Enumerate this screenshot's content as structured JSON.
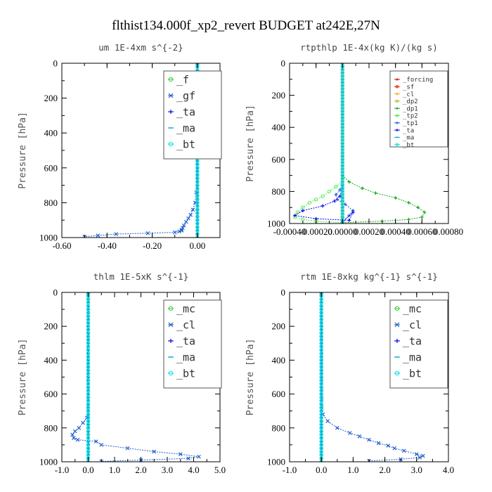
{
  "figure_title": "flthist134.000f_xp2_revert  BUDGET at242E,27N",
  "chart_data": [
    {
      "type": "line",
      "title": "um  1E-4xm s^{-2}",
      "ylabel": "Pressure [hPa]",
      "xlim": [
        -0.6,
        0.1
      ],
      "ylim": [
        1000,
        0
      ],
      "xticks": [
        -0.6,
        -0.4,
        -0.2,
        0.0
      ],
      "xtick_labels": [
        "-0.60",
        "-0.40",
        "-0.20",
        "0.00"
      ],
      "yticks": [
        0,
        200,
        400,
        600,
        800,
        1000
      ],
      "ytick_labels": [
        "0",
        "200",
        "400",
        "600",
        "800",
        "1000"
      ],
      "legend_position": "top-right",
      "series": [
        {
          "name": "_f",
          "color": "#33cc33",
          "marker": "o",
          "x": [
            0,
            0
          ],
          "y": [
            0,
            1000
          ]
        },
        {
          "name": "_gf",
          "color": "#1f5fcf",
          "marker": "x",
          "x": [
            0,
            -0.005,
            -0.01,
            -0.02,
            -0.03,
            -0.04,
            -0.05,
            -0.06,
            -0.065,
            -0.07,
            -0.07,
            -0.08,
            -0.1,
            -0.22,
            -0.36,
            -0.44,
            -0.5
          ],
          "y": [
            0,
            740,
            800,
            840,
            870,
            890,
            910,
            930,
            945,
            955,
            960,
            965,
            970,
            975,
            980,
            988,
            995
          ]
        },
        {
          "name": "_ta",
          "color": "#0000ee",
          "marker": "+",
          "x": [
            0,
            0
          ],
          "y": [
            0,
            1000
          ]
        },
        {
          "name": "_ma",
          "color": "#00aadd",
          "marker": "-",
          "x": [
            0,
            0
          ],
          "y": [
            0,
            1000
          ]
        },
        {
          "name": "_bt",
          "color": "#00e5e5",
          "marker": "o",
          "x": [
            0,
            0
          ],
          "y": [
            0,
            1000
          ]
        }
      ]
    },
    {
      "type": "line",
      "title": "rtpthlp  1E-4x(kg K)/(kg s)",
      "ylabel": "Pressure [hPa]",
      "xlim": [
        -0.0004,
        0.0008
      ],
      "ylim": [
        1000,
        0
      ],
      "xticks": [
        -0.0004,
        -0.0002,
        0.0,
        0.0002,
        0.0004,
        0.0006,
        0.0008
      ],
      "xtick_labels": [
        "-0.00040",
        "-0.00020",
        "0.00000",
        "0.00020",
        "0.00040",
        "0.00060",
        "0.00080"
      ],
      "yticks": [
        0,
        200,
        400,
        600,
        800,
        1000
      ],
      "ytick_labels": [
        "0",
        "200",
        "400",
        "600",
        "800",
        "1000"
      ],
      "legend_position": "top-right",
      "series": [
        {
          "name": "_forcing",
          "color": "#cc0000",
          "marker": "+",
          "x": [
            0,
            0
          ],
          "y": [
            0,
            1000
          ]
        },
        {
          "name": "_sf",
          "color": "#ee2200",
          "marker": "o",
          "x": [
            0,
            0
          ],
          "y": [
            0,
            1000
          ]
        },
        {
          "name": "_cl",
          "color": "#ffaa00",
          "marker": "+",
          "x": [
            0,
            0
          ],
          "y": [
            0,
            1000
          ]
        },
        {
          "name": "_dp2",
          "color": "#b0c040",
          "marker": "o",
          "x": [
            0,
            0
          ],
          "y": [
            0,
            1000
          ]
        },
        {
          "name": "_dp1",
          "color": "#11aa11",
          "marker": "+",
          "x": [
            0.0,
            5e-05,
            0.00015,
            0.00025,
            0.0004,
            0.0005,
            0.00057,
            0.00062,
            0.0006,
            0.0005,
            0.0003,
            0.0
          ],
          "y": [
            700,
            740,
            780,
            810,
            840,
            870,
            900,
            930,
            960,
            975,
            985,
            995
          ]
        },
        {
          "name": "_tp2",
          "color": "#55ee55",
          "marker": "o",
          "x": [
            0.0,
            -5e-05,
            -0.0001,
            -0.00015,
            -0.0002,
            -0.00025,
            -0.0003,
            -0.00034,
            -0.00036,
            -0.0003,
            -0.0002,
            0.0
          ],
          "y": [
            740,
            770,
            800,
            830,
            850,
            870,
            900,
            930,
            960,
            975,
            985,
            995
          ]
        },
        {
          "name": "_tp1",
          "color": "#2255dd",
          "marker": "+",
          "x": [
            0,
            -2e-05,
            -5e-05,
            -4e-05,
            2e-05,
            8e-05,
            5e-05,
            0.0
          ],
          "y": [
            760,
            790,
            820,
            850,
            880,
            920,
            950,
            990
          ]
        },
        {
          "name": "_ta",
          "color": "#0000ee",
          "marker": "+",
          "x": [
            0,
            -2e-05,
            -6e-05,
            -0.00015,
            -0.0003,
            -0.00036,
            -0.0002,
            5e-05,
            8e-05,
            0.0
          ],
          "y": [
            780,
            830,
            860,
            890,
            920,
            950,
            970,
            980,
            930,
            990
          ]
        },
        {
          "name": "_ma",
          "color": "#00aadd",
          "marker": "-",
          "x": [
            0,
            0
          ],
          "y": [
            0,
            1000
          ]
        },
        {
          "name": "_bt",
          "color": "#00e5e5",
          "marker": "o",
          "x": [
            0,
            0
          ],
          "y": [
            0,
            1000
          ]
        }
      ]
    },
    {
      "type": "line",
      "title": "thlm  1E-5xK s^{-1}",
      "ylabel": "Pressure [hPa]",
      "xlim": [
        -1.0,
        5.0
      ],
      "ylim": [
        1000,
        0
      ],
      "xticks": [
        -1.0,
        0.0,
        1.0,
        2.0,
        3.0,
        4.0,
        5.0
      ],
      "xtick_labels": [
        "-1.0",
        "0.0",
        "1.0",
        "2.0",
        "3.0",
        "4.0",
        "5.0"
      ],
      "yticks": [
        0,
        200,
        400,
        600,
        800,
        1000
      ],
      "ytick_labels": [
        "0",
        "200",
        "400",
        "600",
        "800",
        "1000"
      ],
      "legend_position": "top-right",
      "series": [
        {
          "name": "_mc",
          "color": "#33cc33",
          "marker": "o",
          "x": [
            0,
            0
          ],
          "y": [
            0,
            1000
          ]
        },
        {
          "name": "_cl",
          "color": "#1f5fcf",
          "marker": "x",
          "x": [
            0,
            -0.05,
            -0.2,
            -0.35,
            -0.5,
            -0.6,
            -0.55,
            -0.4,
            0.3,
            0.5,
            1.5,
            2.5,
            3.5,
            4.2,
            3.8,
            2.0,
            0.5
          ],
          "y": [
            0,
            740,
            770,
            800,
            820,
            840,
            860,
            870,
            880,
            900,
            920,
            940,
            955,
            970,
            980,
            990,
            998
          ]
        },
        {
          "name": "_ta",
          "color": "#0000ee",
          "marker": "+",
          "x": [
            0,
            0
          ],
          "y": [
            0,
            1000
          ]
        },
        {
          "name": "_ma",
          "color": "#00aadd",
          "marker": "-",
          "x": [
            0,
            0
          ],
          "y": [
            0,
            1000
          ]
        },
        {
          "name": "_bt",
          "color": "#00e5e5",
          "marker": "o",
          "x": [
            0,
            0
          ],
          "y": [
            0,
            1000
          ]
        }
      ]
    },
    {
      "type": "line",
      "title": "rtm  1E-8xkg kg^{-1} s^{-1}",
      "ylabel": "Pressure [hPa]",
      "xlim": [
        -1.0,
        4.0
      ],
      "ylim": [
        1000,
        0
      ],
      "xticks": [
        -1.0,
        0.0,
        1.0,
        2.0,
        3.0,
        4.0
      ],
      "xtick_labels": [
        "-1.0",
        "0.0",
        "1.0",
        "2.0",
        "3.0",
        "4.0"
      ],
      "yticks": [
        0,
        200,
        400,
        600,
        800,
        1000
      ],
      "ytick_labels": [
        "0",
        "200",
        "400",
        "600",
        "800",
        "1000"
      ],
      "legend_position": "top-right",
      "series": [
        {
          "name": "_mc",
          "color": "#33cc33",
          "marker": "o",
          "x": [
            0,
            0
          ],
          "y": [
            0,
            1000
          ]
        },
        {
          "name": "_cl",
          "color": "#1f5fcf",
          "marker": "x",
          "x": [
            0,
            0.05,
            0.2,
            0.5,
            0.9,
            1.2,
            1.5,
            1.8,
            2.1,
            2.3,
            2.6,
            3.0,
            3.2,
            3.1,
            2.5,
            1.5
          ],
          "y": [
            0,
            720,
            760,
            800,
            830,
            850,
            870,
            890,
            905,
            920,
            935,
            955,
            965,
            975,
            985,
            995
          ]
        },
        {
          "name": "_ta",
          "color": "#0000ee",
          "marker": "+",
          "x": [
            0,
            0
          ],
          "y": [
            0,
            1000
          ]
        },
        {
          "name": "_ma",
          "color": "#00aadd",
          "marker": "-",
          "x": [
            0,
            0
          ],
          "y": [
            0,
            1000
          ]
        },
        {
          "name": "_bt",
          "color": "#00e5e5",
          "marker": "o",
          "x": [
            0,
            0
          ],
          "y": [
            0,
            1000
          ]
        }
      ]
    }
  ]
}
